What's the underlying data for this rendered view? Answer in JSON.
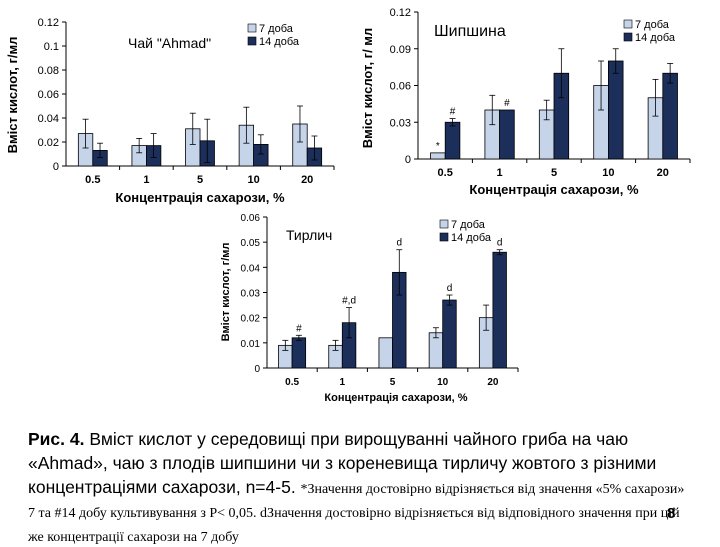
{
  "colors": {
    "series1": "#c6d4ea",
    "series2": "#1c2e5a",
    "axis": "#000000"
  },
  "chart_data": [
    {
      "type": "bar",
      "title": "Чай \"Ahmad\"",
      "xlabel": "Концентрація сахарози, %",
      "ylabel": "Вміст кислот, г/мл",
      "categories": [
        "0.5",
        "1",
        "5",
        "10",
        "20"
      ],
      "ylim": [
        0,
        0.12
      ],
      "yticks": [
        "0",
        "0.02",
        "0.04",
        "0.06",
        "0.08",
        "0.1",
        "0.12"
      ],
      "series": [
        {
          "name": "7 доба",
          "values": [
            0.027,
            0.017,
            0.031,
            0.034,
            0.035
          ],
          "errors": [
            0.012,
            0.006,
            0.013,
            0.015,
            0.015
          ],
          "marks": [
            "",
            "",
            "",
            "",
            ""
          ]
        },
        {
          "name": "14 доба",
          "values": [
            0.013,
            0.017,
            0.021,
            0.018,
            0.015
          ],
          "errors": [
            0.006,
            0.01,
            0.018,
            0.008,
            0.01
          ],
          "marks": [
            "",
            "",
            "",
            "",
            ""
          ]
        }
      ]
    },
    {
      "type": "bar",
      "title": "Шипшина",
      "xlabel": "Концентрація сахарози, %",
      "ylabel": "Вміст кислот, г/ мл",
      "categories": [
        "0.5",
        "1",
        "5",
        "10",
        "20"
      ],
      "ylim": [
        0,
        0.12
      ],
      "yticks": [
        "0",
        "0.03",
        "0.06",
        "0.09",
        "0.12"
      ],
      "series": [
        {
          "name": "7 доба",
          "values": [
            0.005,
            0.04,
            0.04,
            0.06,
            0.05
          ],
          "errors": [
            0.0,
            0.012,
            0.008,
            0.02,
            0.015
          ],
          "marks": [
            "*",
            "",
            "",
            "",
            ""
          ]
        },
        {
          "name": "14 доба",
          "values": [
            0.03,
            0.04,
            0.07,
            0.08,
            0.07
          ],
          "errors": [
            0.003,
            0.0,
            0.02,
            0.01,
            0.008
          ],
          "marks": [
            "#",
            "#",
            "",
            "",
            ""
          ]
        }
      ]
    },
    {
      "type": "bar",
      "title": "Тирлич",
      "xlabel": "Концентрація сахарози, %",
      "ylabel": "Вміст кислот, г/мл",
      "categories": [
        "0.5",
        "1",
        "5",
        "10",
        "20"
      ],
      "ylim": [
        0,
        0.06
      ],
      "yticks": [
        "0",
        "0.01",
        "0.02",
        "0.03",
        "0.04",
        "0.05",
        "0.06"
      ],
      "series": [
        {
          "name": "7 доба",
          "values": [
            0.009,
            0.009,
            0.012,
            0.014,
            0.02
          ],
          "errors": [
            0.002,
            0.002,
            0.0,
            0.002,
            0.005
          ],
          "marks": [
            "",
            "",
            "",
            "",
            ""
          ]
        },
        {
          "name": "14 доба",
          "values": [
            0.012,
            0.018,
            0.038,
            0.027,
            0.046
          ],
          "errors": [
            0.001,
            0.006,
            0.009,
            0.002,
            0.001
          ],
          "marks": [
            "#",
            "#,d",
            "d",
            "d",
            "d"
          ]
        }
      ]
    }
  ],
  "caption": {
    "lead": "Рис. 4.",
    "main": " Вміст кислот у середовищі при вирощуванні чайного гриба на чаю «Ahmad», чаю з плодів шипшини чи з кореневища тирличу жовтого з різними концентраціями сахарози, n=4-5. ",
    "note": "*Значення достовірно відрізняється від значення «5% сахарози» 7 та #14 добу культивування з Р< 0,05. dЗначення достовірно відрізняється від відповідного значення при цій же концентрації сахарози на 7 добу"
  },
  "page_number": "8"
}
